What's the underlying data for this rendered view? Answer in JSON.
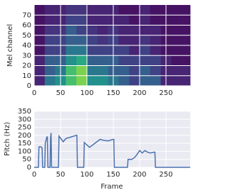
{
  "chart_data": [
    {
      "type": "heatmap",
      "ylabel": "Mel channel",
      "x_bins": [
        0,
        20,
        40,
        60,
        80,
        100,
        120,
        140,
        160,
        180,
        200,
        220,
        240,
        260,
        280,
        296
      ],
      "y_bins": [
        0,
        10,
        20,
        30,
        40,
        50,
        60,
        70,
        80
      ],
      "z": [
        [
          0.1,
          0.4,
          0.5,
          0.7,
          0.8,
          0.5,
          0.5,
          0.4,
          0.3,
          0.2,
          0.3,
          0.3,
          0.1,
          0.1,
          0.1
        ],
        [
          0.1,
          0.3,
          0.4,
          0.7,
          0.8,
          0.4,
          0.4,
          0.3,
          0.3,
          0.2,
          0.3,
          0.2,
          0.1,
          0.1,
          0.1
        ],
        [
          0.1,
          0.3,
          0.3,
          0.5,
          0.6,
          0.3,
          0.3,
          0.3,
          0.2,
          0.2,
          0.2,
          0.2,
          0.1,
          0.05,
          0.05
        ],
        [
          0.05,
          0.2,
          0.2,
          0.4,
          0.4,
          0.2,
          0.2,
          0.2,
          0.2,
          0.1,
          0.2,
          0.1,
          0.05,
          0.05,
          0.05
        ],
        [
          0.05,
          0.2,
          0.2,
          0.3,
          0.3,
          0.2,
          0.15,
          0.2,
          0.1,
          0.1,
          0.15,
          0.1,
          0.05,
          0.05,
          0.05
        ],
        [
          0.05,
          0.15,
          0.15,
          0.3,
          0.2,
          0.15,
          0.1,
          0.15,
          0.1,
          0.1,
          0.1,
          0.1,
          0.05,
          0.05,
          0.05
        ],
        [
          0.05,
          0.1,
          0.1,
          0.2,
          0.2,
          0.1,
          0.1,
          0.1,
          0.1,
          0.05,
          0.1,
          0.05,
          0.05,
          0.05,
          0.05
        ],
        [
          0.05,
          0.1,
          0.1,
          0.15,
          0.15,
          0.1,
          0.1,
          0.1,
          0.05,
          0.05,
          0.1,
          0.05,
          0.05,
          0.05,
          0.05
        ]
      ],
      "xlim": [
        0,
        296
      ],
      "ylim": [
        0,
        80
      ],
      "xticks": [
        0,
        50,
        100,
        150,
        200,
        250
      ],
      "yticks": [
        0,
        10,
        20,
        30,
        40,
        50,
        60,
        70
      ],
      "grid": true
    },
    {
      "type": "line",
      "xlabel": "Frame",
      "ylabel": "Pitch (Hz)",
      "x": [
        0,
        8,
        9,
        13,
        15,
        16,
        20,
        21,
        24,
        25,
        26,
        30,
        31,
        32,
        33,
        45,
        46,
        47,
        55,
        60,
        70,
        80,
        81,
        82,
        93,
        94,
        95,
        100,
        105,
        115,
        125,
        130,
        140,
        150,
        151,
        152,
        177,
        178,
        185,
        190,
        195,
        200,
        205,
        210,
        215,
        220,
        228,
        229,
        230,
        296
      ],
      "series": [
        {
          "color": "#4c72b0",
          "values": [
            0,
            0,
            128,
            128,
            120,
            0,
            0,
            150,
            190,
            190,
            0,
            0,
            180,
            215,
            0,
            0,
            0,
            195,
            160,
            180,
            190,
            200,
            200,
            0,
            0,
            0,
            155,
            140,
            125,
            150,
            175,
            170,
            165,
            175,
            175,
            0,
            0,
            50,
            50,
            60,
            80,
            105,
            90,
            105,
            95,
            90,
            95,
            95,
            0,
            0
          ]
        }
      ],
      "xlim": [
        0,
        296
      ],
      "ylim": [
        0,
        350
      ],
      "xticks": [
        0,
        50,
        100,
        150,
        200,
        250
      ],
      "yticks": [
        0,
        50,
        100,
        150,
        200,
        250,
        300,
        350
      ],
      "grid": true
    }
  ]
}
